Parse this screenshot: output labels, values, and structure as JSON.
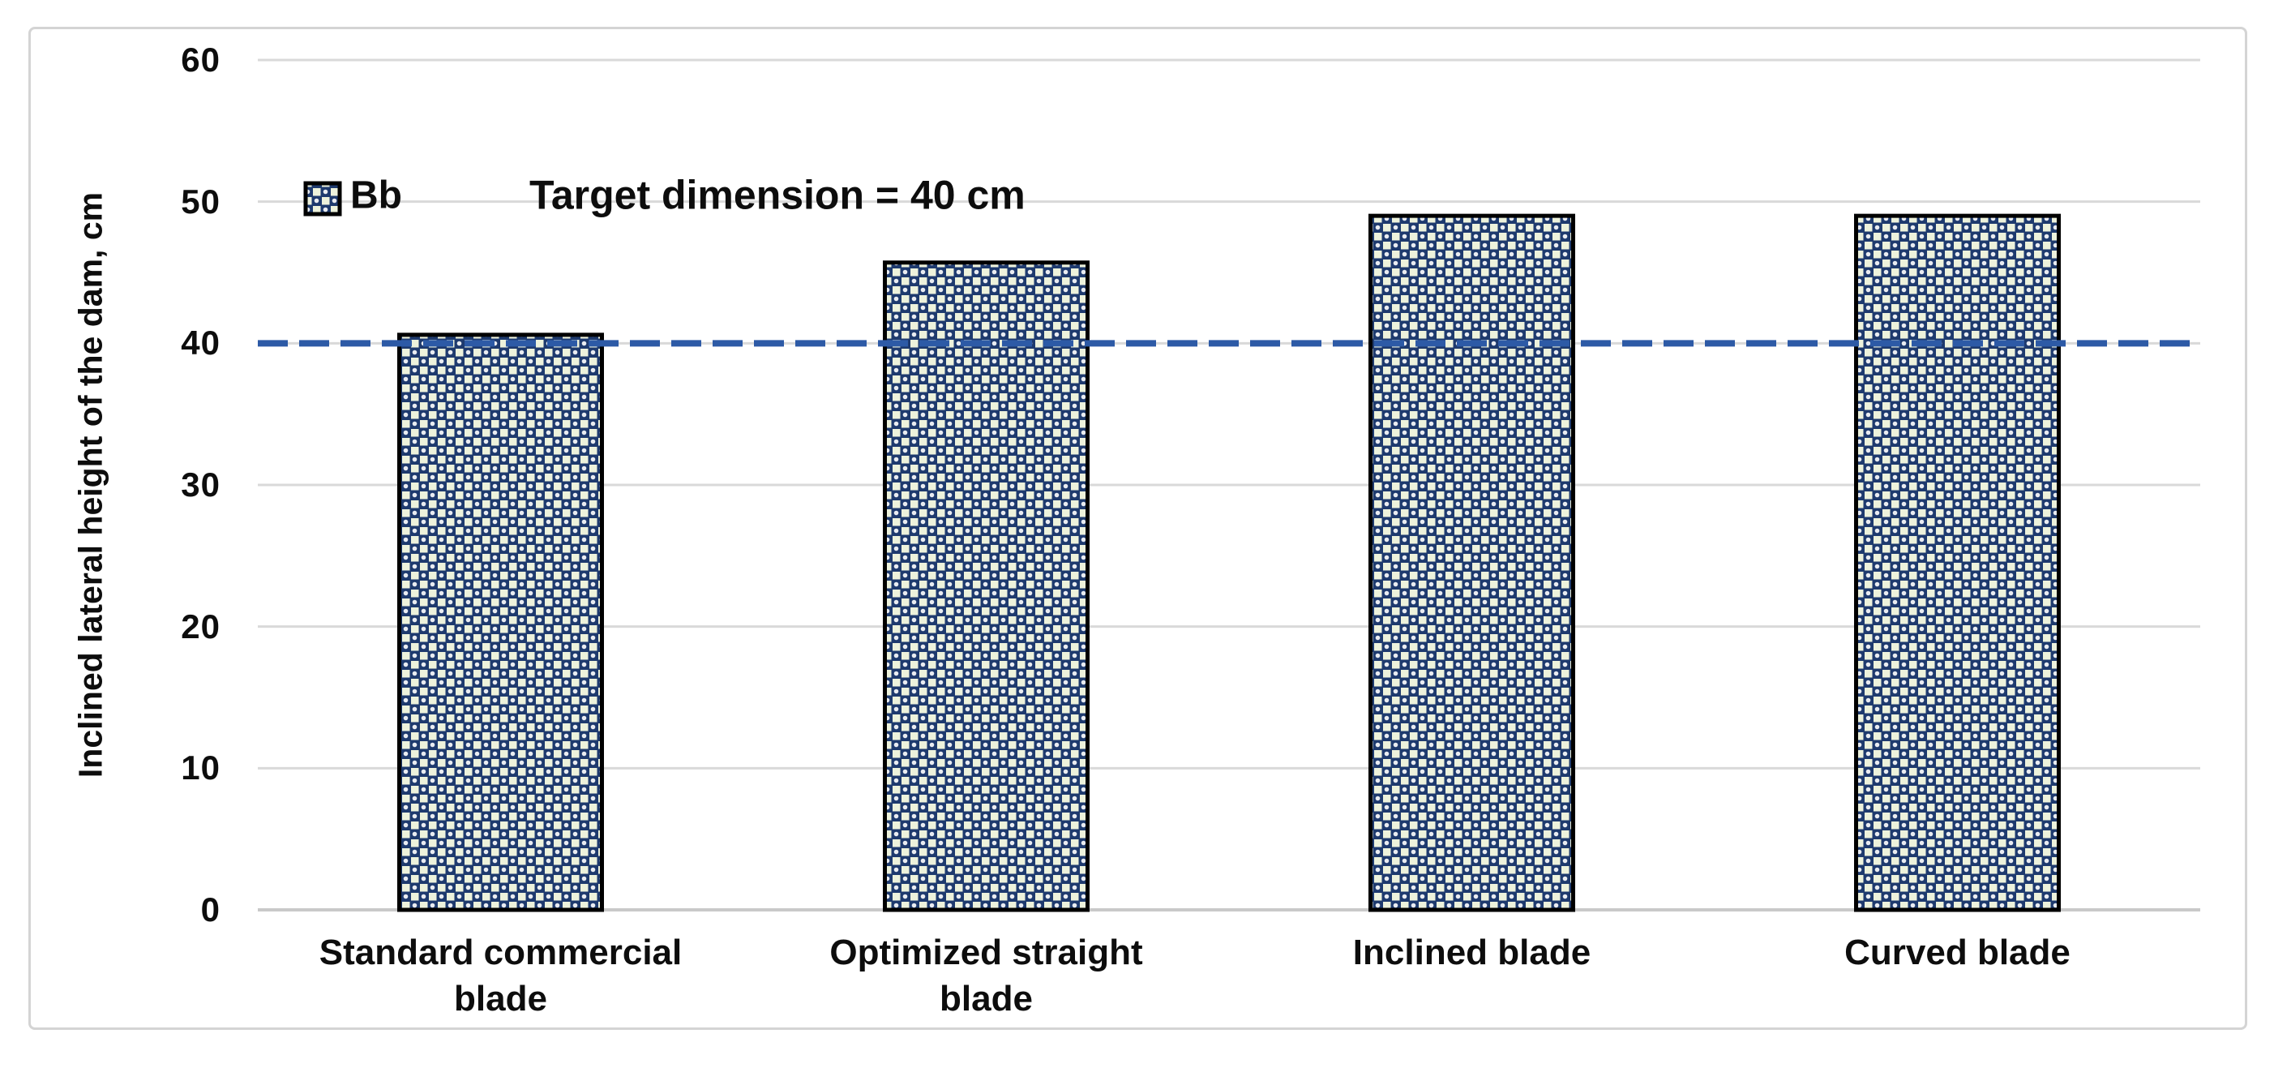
{
  "chart_data": {
    "type": "bar",
    "categories": [
      "Standard commercial blade",
      "Optimized straight blade",
      "Inclined blade",
      "Curved blade"
    ],
    "series": [
      {
        "name": "Bb",
        "values": [
          40.6,
          45.7,
          49,
          49
        ]
      }
    ],
    "title": "",
    "xlabel": "",
    "ylabel": "Inclined lateral height of the dam, cm",
    "ylim": [
      0,
      60
    ],
    "yticks": [
      0,
      10,
      20,
      30,
      40,
      50,
      60
    ],
    "grid": true,
    "legend": {
      "label": "Bb",
      "position": "inside-top-left"
    },
    "target_line": {
      "value": 40,
      "label": "Target dimension = 40 cm",
      "style": "dashed"
    },
    "colors": {
      "bar_fill": "#1E3A6E",
      "bar_pattern_dot": "#EDF2DC",
      "bar_pattern_speck": "#FFFFFF",
      "bar_border": "#000000",
      "target_line": "#2D5AA6",
      "gridline": "#D9D9D9",
      "axis_line": "#C9C9C9",
      "text": "#0D0D0D",
      "frame_border": "#D4D4D4",
      "background": "#FFFFFF"
    }
  }
}
